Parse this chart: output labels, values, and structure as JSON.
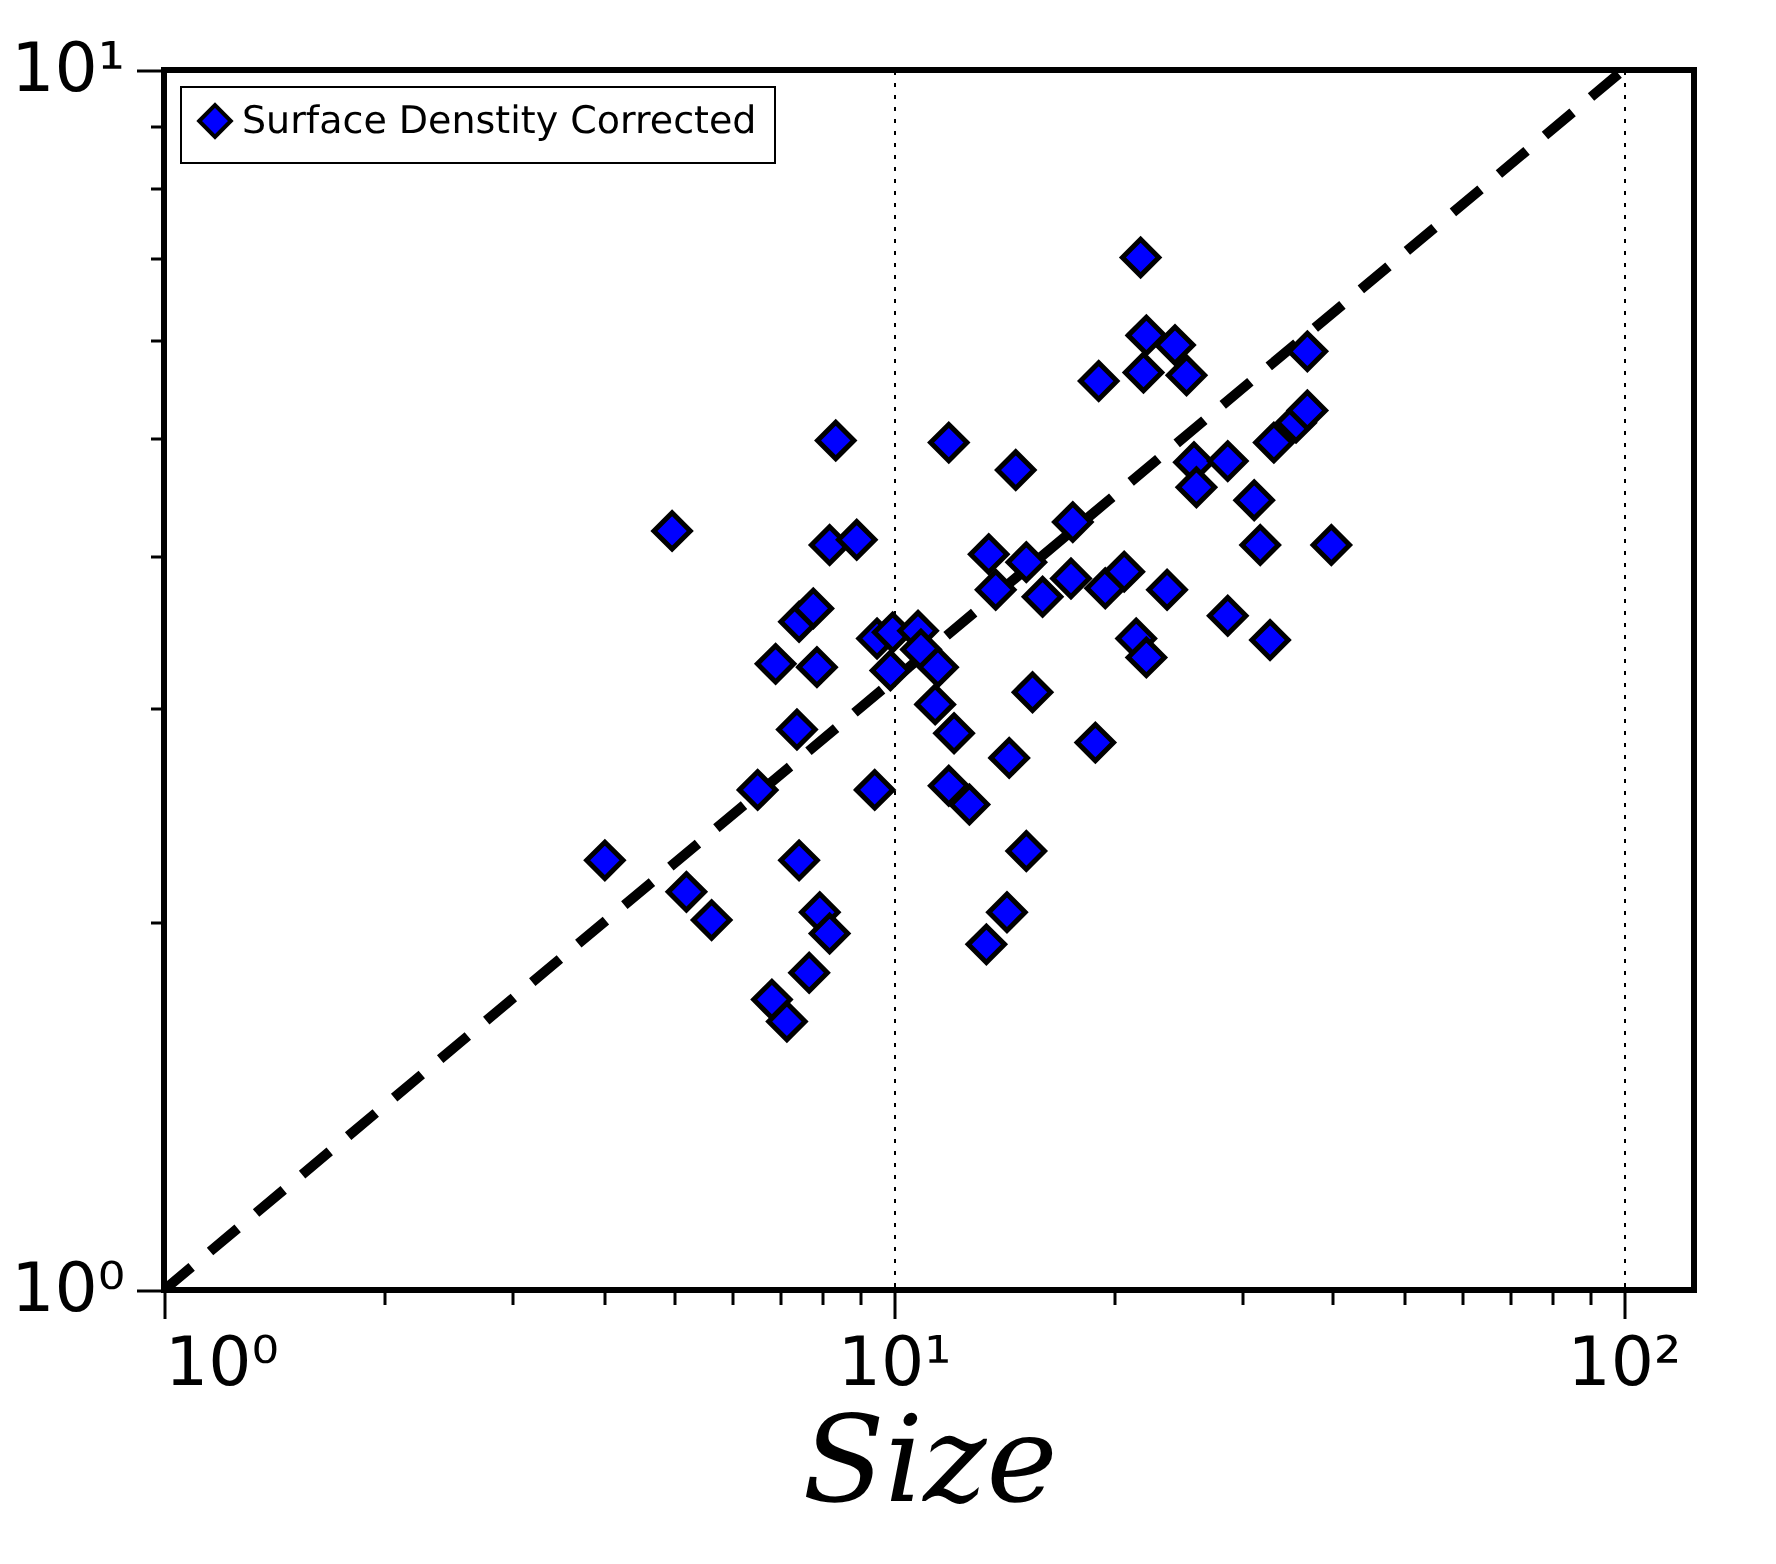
{
  "chart_data": {
    "type": "scatter",
    "xlabel": "Size",
    "xlim": [
      1,
      125
    ],
    "ylim": [
      1,
      10
    ],
    "xticks": [
      {
        "value": 1,
        "label": "10⁰"
      },
      {
        "value": 2,
        "label": null
      },
      {
        "value": 3,
        "label": null
      },
      {
        "value": 4,
        "label": null
      },
      {
        "value": 5,
        "label": null
      },
      {
        "value": 6,
        "label": null
      },
      {
        "value": 7,
        "label": null
      },
      {
        "value": 8,
        "label": null
      },
      {
        "value": 9,
        "label": null
      },
      {
        "value": 10,
        "label": "10¹"
      },
      {
        "value": 20,
        "label": null
      },
      {
        "value": 30,
        "label": null
      },
      {
        "value": 40,
        "label": null
      },
      {
        "value": 50,
        "label": null
      },
      {
        "value": 60,
        "label": null
      },
      {
        "value": 70,
        "label": null
      },
      {
        "value": 80,
        "label": null
      },
      {
        "value": 90,
        "label": null
      },
      {
        "value": 100,
        "label": "10²"
      }
    ],
    "yticks": [
      {
        "value": 1,
        "label": "10⁰"
      },
      {
        "value": 2,
        "label": null
      },
      {
        "value": 3,
        "label": null
      },
      {
        "value": 4,
        "label": null
      },
      {
        "value": 5,
        "label": null
      },
      {
        "value": 6,
        "label": null
      },
      {
        "value": 7,
        "label": null
      },
      {
        "value": 8,
        "label": null
      },
      {
        "value": 9,
        "label": null
      },
      {
        "value": 10,
        "label": "10¹"
      }
    ],
    "log": "xy",
    "grid": "x",
    "legend": "top left",
    "series": [
      {
        "type": "line",
        "color": "#000000",
        "line_style": "dashed",
        "x": [
          1,
          100
        ],
        "values": [
          1,
          10
        ]
      },
      {
        "name": "Surface Denstity Corrected",
        "marker": "diamond",
        "color": "#0000ff",
        "x": [
          4.02,
          4.97,
          5.2,
          5.63,
          6.51,
          6.81,
          7.14,
          6.89,
          7.42,
          7.76,
          7.85,
          7.37,
          7.42,
          7.92,
          8.17,
          7.66,
          8.33,
          8.17,
          8.9,
          9.42,
          9.49,
          9.97,
          9.9,
          10.8,
          10.9,
          11.5,
          11.4,
          12.1,
          11.9,
          11.9,
          12.7,
          13.4,
          14.3,
          15.2,
          14.4,
          15.5,
          14.7,
          13.5,
          13.8,
          15.2,
          16.0,
          17.5,
          17.6,
          19.5,
          20.7,
          23.7,
          18.9,
          19.1,
          21.5,
          22.2,
          21.8,
          22.2,
          24.3,
          22.0,
          25.2,
          25.8,
          26.0,
          28.7,
          31.2,
          31.8,
          28.7,
          32.8,
          33.2,
          35.6,
          36.9,
          36.9,
          39.8
        ],
        "values": [
          2.25,
          4.19,
          2.12,
          2.01,
          2.57,
          1.73,
          1.66,
          3.26,
          3.53,
          3.62,
          3.24,
          2.88,
          2.25,
          2.04,
          1.96,
          1.82,
          4.97,
          4.08,
          4.12,
          2.57,
          3.42,
          3.46,
          3.22,
          3.47,
          3.35,
          3.24,
          3.02,
          2.86,
          4.95,
          2.59,
          2.5,
          1.92,
          2.04,
          2.29,
          2.73,
          3.09,
          4.7,
          4.01,
          3.75,
          3.95,
          3.7,
          3.83,
          4.26,
          3.76,
          3.88,
          3.75,
          2.81,
          5.56,
          3.42,
          3.3,
          7.02,
          6.06,
          5.95,
          5.65,
          5.62,
          4.77,
          4.55,
          4.78,
          4.44,
          4.08,
          3.57,
          3.41,
          4.95,
          5.14,
          5.26,
          5.88,
          4.08
        ]
      }
    ]
  }
}
